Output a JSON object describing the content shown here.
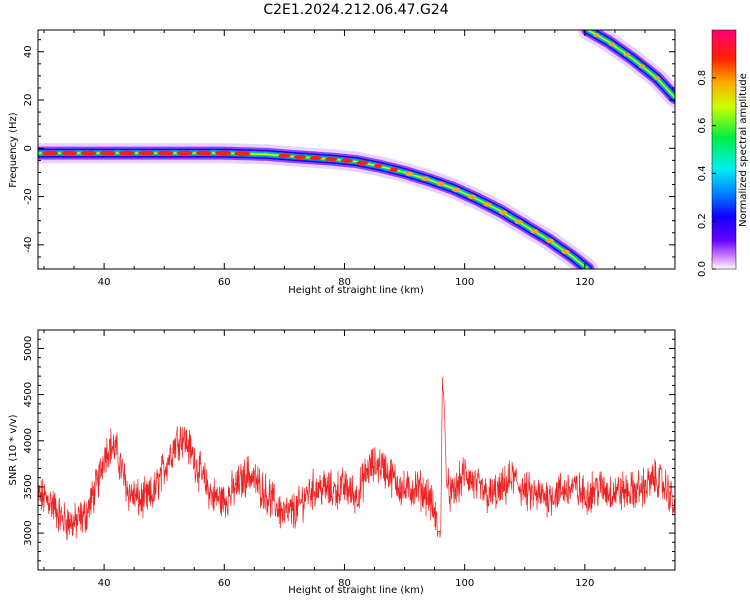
{
  "title": "C2E1.2024.212.06.47.G24",
  "chart_data": [
    {
      "type": "heatmap",
      "xlabel": "Height of straight line (km)",
      "ylabel": "Frequency (Hz)",
      "xlim": [
        29,
        135
      ],
      "ylim": [
        -50,
        49
      ],
      "xticks": [
        40,
        60,
        80,
        100,
        120
      ],
      "yticks": [
        -40,
        -20,
        0,
        20,
        40
      ],
      "colorbar": {
        "label": "Normalized spectral amplitude",
        "range": [
          0,
          1
        ],
        "ticks": [
          "0.0",
          "0.2",
          "0.4",
          "0.6",
          "0.8"
        ]
      },
      "ridge": [
        {
          "x": 29,
          "y": -2
        },
        {
          "x": 40,
          "y": -2
        },
        {
          "x": 50,
          "y": -2
        },
        {
          "x": 60,
          "y": -2
        },
        {
          "x": 67,
          "y": -2.5
        },
        {
          "x": 72,
          "y": -3.5
        },
        {
          "x": 78,
          "y": -4.5
        },
        {
          "x": 82,
          "y": -5.5
        },
        {
          "x": 86,
          "y": -7.5
        },
        {
          "x": 90,
          "y": -10
        },
        {
          "x": 94,
          "y": -13
        },
        {
          "x": 98,
          "y": -16.5
        },
        {
          "x": 102,
          "y": -21
        },
        {
          "x": 106,
          "y": -26
        },
        {
          "x": 110,
          "y": -32
        },
        {
          "x": 114,
          "y": -38
        },
        {
          "x": 118,
          "y": -45
        },
        {
          "x": 120.5,
          "y": -50
        }
      ],
      "aliased_ridge": [
        {
          "x": 120.5,
          "y": 49
        },
        {
          "x": 124,
          "y": 44
        },
        {
          "x": 128,
          "y": 37
        },
        {
          "x": 132,
          "y": 29
        },
        {
          "x": 135,
          "y": 21
        }
      ]
    },
    {
      "type": "line",
      "xlabel": "Height of straight line (km)",
      "ylabel": "SNR (10 * v/v)",
      "xlim": [
        29,
        135
      ],
      "ylim": [
        2600,
        5200
      ],
      "xticks": [
        40,
        60,
        80,
        100,
        120
      ],
      "yticks": [
        3000,
        3500,
        4000,
        4500,
        5000
      ],
      "color": "#ee2222",
      "series": [
        {
          "x": [
            29,
            31,
            33,
            35,
            37,
            39,
            40,
            41,
            42,
            44,
            46,
            48,
            50,
            52,
            53,
            54,
            56,
            58,
            60,
            62,
            64,
            66,
            68,
            70,
            72,
            74,
            76,
            78,
            80,
            82,
            84,
            86,
            88,
            90,
            92,
            94,
            95,
            95.5,
            96,
            96.3,
            96.7,
            97,
            98,
            100,
            102,
            104,
            106,
            108,
            110,
            112,
            114,
            116,
            118,
            120,
            122,
            124,
            126,
            128,
            130,
            132,
            134,
            135
          ],
          "values": [
            3400,
            3350,
            3150,
            3100,
            3200,
            3550,
            3850,
            3950,
            3900,
            3450,
            3350,
            3400,
            3700,
            4000,
            4050,
            3950,
            3650,
            3400,
            3350,
            3500,
            3650,
            3500,
            3350,
            3200,
            3250,
            3450,
            3500,
            3450,
            3500,
            3400,
            3700,
            3750,
            3600,
            3450,
            3500,
            3400,
            3200,
            3050,
            2950,
            4700,
            4200,
            3500,
            3400,
            3650,
            3500,
            3400,
            3450,
            3600,
            3450,
            3400,
            3400,
            3450,
            3500,
            3400,
            3500,
            3450,
            3450,
            3450,
            3500,
            3600,
            3450,
            3250
          ]
        }
      ]
    }
  ]
}
